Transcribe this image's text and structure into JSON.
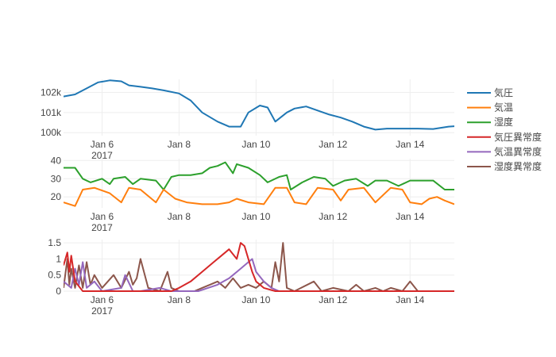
{
  "chart_data": {
    "type": "line",
    "x_axis": {
      "ticks": [
        "Jan 6",
        "Jan 8",
        "Jan 10",
        "Jan 12",
        "Jan 14"
      ],
      "tick_days": [
        6,
        8,
        10,
        12,
        14
      ],
      "year_label": "2017",
      "range_days": [
        5.0,
        15.15
      ]
    },
    "legend": {
      "placement": "right",
      "items": [
        {
          "name": "気圧",
          "color": "#1f77b4"
        },
        {
          "name": "気温",
          "color": "#ff7f0e"
        },
        {
          "name": "湿度",
          "color": "#2ca02c"
        },
        {
          "name": "気圧異常度",
          "color": "#d62728"
        },
        {
          "name": "気温異常度",
          "color": "#9467bd"
        },
        {
          "name": "湿度異常度",
          "color": "#8c564b"
        }
      ]
    },
    "subplots": [
      {
        "y_ticks": [
          "100k",
          "101k",
          "102k"
        ],
        "y_tick_values": [
          100000,
          101000,
          102000
        ],
        "ylim": [
          99850,
          102650
        ],
        "grid": true,
        "series": [
          {
            "name": "気圧",
            "color": "#1f77b4",
            "x": [
              5.0,
              5.3,
              5.6,
              5.9,
              6.2,
              6.5,
              6.7,
              7.0,
              7.3,
              7.6,
              8.0,
              8.3,
              8.6,
              9.0,
              9.3,
              9.6,
              9.8,
              10.1,
              10.3,
              10.5,
              10.8,
              11.0,
              11.3,
              11.6,
              11.9,
              12.2,
              12.5,
              12.8,
              13.1,
              13.4,
              13.8,
              14.2,
              14.6,
              15.0,
              15.15
            ],
            "y": [
              101800,
              101900,
              102200,
              102500,
              102600,
              102550,
              102350,
              102280,
              102200,
              102100,
              101950,
              101600,
              101000,
              100550,
              100300,
              100300,
              101000,
              101350,
              101250,
              100550,
              101000,
              101200,
              101300,
              101100,
              100900,
              100750,
              100550,
              100300,
              100150,
              100200,
              100200,
              100200,
              100180,
              100300,
              100320
            ]
          }
        ]
      },
      {
        "y_ticks": [
          "20",
          "30",
          "40"
        ],
        "y_tick_values": [
          20,
          30,
          40
        ],
        "ylim": [
          14,
          41
        ],
        "grid": true,
        "series": [
          {
            "name": "湿度",
            "color": "#2ca02c",
            "x": [
              5.0,
              5.3,
              5.5,
              5.7,
              6.0,
              6.2,
              6.3,
              6.6,
              6.8,
              7.0,
              7.4,
              7.6,
              7.8,
              8.0,
              8.3,
              8.6,
              8.8,
              9.0,
              9.2,
              9.4,
              9.5,
              9.8,
              10.1,
              10.3,
              10.6,
              10.8,
              10.9,
              11.2,
              11.5,
              11.8,
              12.0,
              12.3,
              12.6,
              12.9,
              13.1,
              13.4,
              13.7,
              14.0,
              14.3,
              14.6,
              14.9,
              15.15
            ],
            "y": [
              36,
              36,
              30,
              28,
              30,
              27,
              30,
              31,
              27,
              30,
              29,
              24,
              31,
              32,
              32,
              33,
              36,
              37,
              39,
              33,
              38,
              36,
              32,
              28,
              31,
              32,
              24,
              28,
              31,
              30,
              26,
              29,
              30,
              26,
              29,
              29,
              26,
              29,
              29,
              29,
              24,
              24
            ]
          },
          {
            "name": "気温",
            "color": "#ff7f0e",
            "x": [
              5.0,
              5.3,
              5.5,
              5.8,
              6.2,
              6.5,
              6.7,
              7.0,
              7.4,
              7.6,
              7.9,
              8.2,
              8.6,
              9.0,
              9.3,
              9.5,
              9.8,
              10.2,
              10.5,
              10.8,
              11.0,
              11.3,
              11.6,
              12.0,
              12.2,
              12.4,
              12.8,
              13.1,
              13.5,
              13.8,
              14.0,
              14.3,
              14.5,
              14.7,
              14.9,
              15.15
            ],
            "y": [
              17,
              15,
              24,
              25,
              22,
              17,
              25,
              24,
              17,
              24,
              19,
              17,
              16,
              16,
              17,
              19,
              17,
              16,
              25,
              25,
              17,
              16,
              25,
              24,
              18,
              24,
              25,
              17,
              25,
              24,
              17,
              16,
              19,
              20,
              18,
              16
            ]
          }
        ]
      },
      {
        "y_ticks": [
          "0",
          "0.5",
          "1",
          "1.5"
        ],
        "y_tick_values": [
          0,
          0.5,
          1,
          1.5
        ],
        "ylim": [
          0,
          1.6
        ],
        "grid": true,
        "series": [
          {
            "name": "湿度異常度",
            "color": "#8c564b",
            "x": [
              5.0,
              5.1,
              5.15,
              5.2,
              5.3,
              5.4,
              5.5,
              5.6,
              5.7,
              5.8,
              6.0,
              6.3,
              6.5,
              6.7,
              6.8,
              6.9,
              7.0,
              7.2,
              7.5,
              7.7,
              7.8,
              8.0,
              8.4,
              8.6,
              8.8,
              9.0,
              9.2,
              9.4,
              9.6,
              9.8,
              10.0,
              10.2,
              10.4,
              10.5,
              10.6,
              10.7,
              10.8,
              11.0,
              11.5,
              11.7,
              12.0,
              12.4,
              12.6,
              12.8,
              13.1,
              13.3,
              13.5,
              13.8,
              14.0,
              14.2,
              14.5,
              14.8,
              15.15
            ],
            "y": [
              0.1,
              1.0,
              0.2,
              0.7,
              0.1,
              0.8,
              0.1,
              0.9,
              0.2,
              0.5,
              0.1,
              0.5,
              0.1,
              0.6,
              0.2,
              0.4,
              1.0,
              0.1,
              0.0,
              0.6,
              0.1,
              0.0,
              0.0,
              0.1,
              0.2,
              0.3,
              0.1,
              0.4,
              0.1,
              0.2,
              0.1,
              0.3,
              0.1,
              0.9,
              0.3,
              1.5,
              0.1,
              0.0,
              0.3,
              0.0,
              0.1,
              0.0,
              0.2,
              0.0,
              0.1,
              0.0,
              0.1,
              0.0,
              0.3,
              0.0,
              0.0,
              0.0,
              0.0
            ]
          },
          {
            "name": "気温異常度",
            "color": "#9467bd",
            "x": [
              5.0,
              5.2,
              5.3,
              5.4,
              5.5,
              5.6,
              5.8,
              6.0,
              6.5,
              6.6,
              6.8,
              7.0,
              7.5,
              7.8,
              8.0,
              8.5,
              9.0,
              9.3,
              9.6,
              9.8,
              9.9,
              10.0,
              10.2,
              10.4,
              10.6,
              11.0,
              12.0,
              13.0,
              14.0,
              15.15
            ],
            "y": [
              0.3,
              0.1,
              0.7,
              0.2,
              0.9,
              0.1,
              0.3,
              0.0,
              0.1,
              0.5,
              0.0,
              0.0,
              0.1,
              0.0,
              0.0,
              0.0,
              0.2,
              0.4,
              0.7,
              0.9,
              1.0,
              0.6,
              0.3,
              0.1,
              0.0,
              0.0,
              0.0,
              0.0,
              0.0,
              0.0
            ]
          },
          {
            "name": "気圧異常度",
            "color": "#d62728",
            "x": [
              5.0,
              5.1,
              5.15,
              5.2,
              5.3,
              5.5,
              6.0,
              7.0,
              7.8,
              8.0,
              8.3,
              8.6,
              8.9,
              9.1,
              9.3,
              9.5,
              9.6,
              9.7,
              9.8,
              9.9,
              10.0,
              10.2,
              10.5,
              11.0,
              12.0,
              13.0,
              14.0,
              15.15
            ],
            "y": [
              0.8,
              1.2,
              0.6,
              1.1,
              0.3,
              0.0,
              0.0,
              0.0,
              0.0,
              0.1,
              0.3,
              0.6,
              0.9,
              1.1,
              1.3,
              1.0,
              1.5,
              1.4,
              1.0,
              0.6,
              0.3,
              0.1,
              0.0,
              0.0,
              0.0,
              0.0,
              0.0,
              0.0
            ]
          }
        ]
      }
    ]
  }
}
